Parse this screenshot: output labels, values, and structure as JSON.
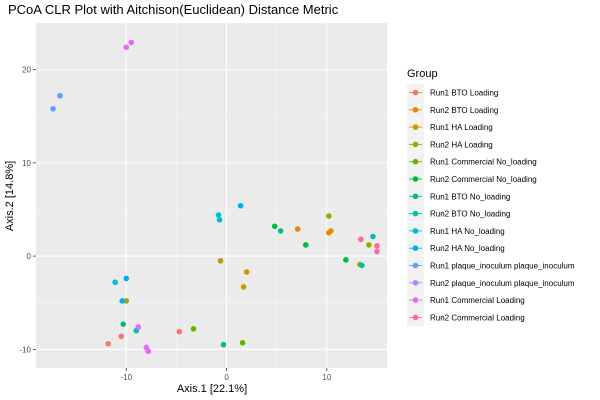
{
  "chart_data": {
    "type": "scatter",
    "title": "PCoA CLR Plot with Aitchison(Euclidean) Distance Metric",
    "xlabel": "Axis.1   [22.1%]",
    "ylabel": "Axis.2   [14.8%]",
    "xlim": [
      -19,
      16
    ],
    "ylim": [
      -12,
      25
    ],
    "xticks": [
      -10,
      0,
      10
    ],
    "yticks": [
      -10,
      0,
      10,
      20
    ],
    "grid": true,
    "legend": {
      "title": "Group",
      "position": "right"
    },
    "series": [
      {
        "name": "Run1 BTO Loading",
        "color": "#F8766D",
        "points": [
          [
            -11.8,
            -9.4
          ],
          [
            -10.5,
            -8.6
          ],
          [
            -4.7,
            -8.1
          ]
        ]
      },
      {
        "name": "Run2 BTO Loading",
        "color": "#E58700",
        "points": [
          [
            7.1,
            2.9
          ],
          [
            10.2,
            2.5
          ],
          [
            10.4,
            2.7
          ]
        ]
      },
      {
        "name": "Run1 HA Loading",
        "color": "#C99800",
        "points": [
          [
            -0.6,
            -0.5
          ],
          [
            2.0,
            -1.7
          ],
          [
            1.7,
            -3.3
          ]
        ]
      },
      {
        "name": "Run2 HA Loading",
        "color": "#A3A500",
        "points": [
          [
            10.2,
            4.3
          ],
          [
            14.2,
            1.2
          ],
          [
            13.3,
            -0.9
          ],
          [
            -10.0,
            -4.8
          ]
        ]
      },
      {
        "name": "Run1 Commercial No_loading",
        "color": "#6BB100",
        "points": [
          [
            -3.3,
            -7.8
          ],
          [
            1.6,
            -9.3
          ]
        ]
      },
      {
        "name": "Run2 Commercial No_loading",
        "color": "#00BA38",
        "points": [
          [
            4.8,
            3.2
          ],
          [
            7.9,
            1.2
          ],
          [
            11.9,
            -0.4
          ]
        ]
      },
      {
        "name": "Run1 BTO No_loading",
        "color": "#00BF7D",
        "points": [
          [
            5.4,
            2.7
          ],
          [
            -0.3,
            -9.5
          ],
          [
            -10.3,
            -7.3
          ]
        ]
      },
      {
        "name": "Run2 BTO No_loading",
        "color": "#00C0AF",
        "points": [
          [
            14.6,
            2.1
          ],
          [
            13.5,
            -1.0
          ],
          [
            -9.0,
            -8.0
          ]
        ]
      },
      {
        "name": "Run1 HA No_loading",
        "color": "#00BCD8",
        "points": [
          [
            -0.8,
            4.4
          ],
          [
            -0.7,
            3.9
          ],
          [
            -11.1,
            -2.8
          ]
        ]
      },
      {
        "name": "Run2 HA No_loading",
        "color": "#00B0F6",
        "points": [
          [
            1.4,
            5.4
          ],
          [
            -10.0,
            -2.4
          ],
          [
            -10.4,
            -4.8
          ]
        ]
      },
      {
        "name": "Run1 plaque_inoculum plaque_inoculum",
        "color": "#619CFF",
        "points": [
          [
            -17.3,
            15.8
          ],
          [
            -16.6,
            17.2
          ]
        ]
      },
      {
        "name": "Run2 plaque_inoculum plaque_inoculum",
        "color": "#B983FF",
        "points": []
      },
      {
        "name": "Run1 Commercial Loading",
        "color": "#E76BF3",
        "points": [
          [
            -10.0,
            22.4
          ],
          [
            -9.5,
            22.9
          ],
          [
            -8.8,
            -7.6
          ],
          [
            -8.0,
            -9.8
          ],
          [
            -7.8,
            -10.2
          ]
        ]
      },
      {
        "name": "Run2 Commercial Loading",
        "color": "#FF67A4",
        "points": [
          [
            13.4,
            1.8
          ],
          [
            15.0,
            1.1
          ],
          [
            15.0,
            0.5
          ]
        ]
      }
    ]
  }
}
